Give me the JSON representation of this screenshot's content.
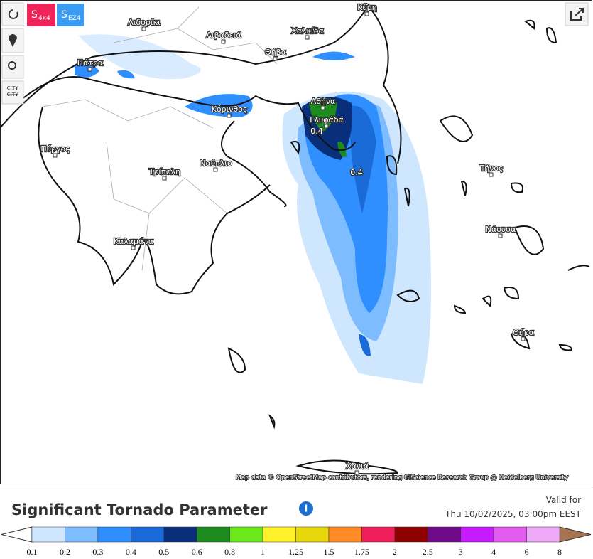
{
  "toolbar": {
    "buttons": [
      {
        "letter": "S",
        "sub": "4x4"
      },
      {
        "letter": "S",
        "sub": "EZ4"
      }
    ],
    "city_button": [
      "CITY",
      "CITY"
    ]
  },
  "map": {
    "places": [
      "Λιδορίκι",
      "Λιβαδειά",
      "Χαλκίδα",
      "Κύμη",
      "Θήβα",
      "Πάτρα",
      "Κόρινθος",
      "Αθήνα",
      "Γλυφάδα",
      "Πύργος",
      "Τρίπολη",
      "Ναύπλιο",
      "Τήνος",
      "Νάουσα",
      "Καλαμάτα",
      "Θήρα",
      "Χανιά"
    ],
    "contour_labels": [
      "0.4",
      "0.4"
    ],
    "attribution": "Map data © OpenStreetMap contributors, rendering GIScience Research Group @ Heidelberg University"
  },
  "legend": {
    "title": "Significant Tornado Parameter",
    "valid_label": "Valid for",
    "valid_time": "Thu 10/02/2025, 03:00pm EEST",
    "ticks": [
      0.1,
      0.2,
      0.3,
      0.4,
      0.5,
      0.6,
      0.8,
      1,
      1.25,
      1.5,
      1.75,
      2,
      2.5,
      3,
      4,
      6,
      8
    ],
    "colors": [
      "#cfe6ff",
      "#7dbcff",
      "#2f8fff",
      "#1a6ad8",
      "#0a2f7a",
      "#1e8b1e",
      "#6be81b",
      "#fff22a",
      "#e6d80a",
      "#ff8a26",
      "#f01e5a",
      "#8c0000",
      "#6f0a86",
      "#c51cff",
      "#e35cf0",
      "#eeaaf8"
    ],
    "under_color": "#ffffff",
    "over_color": "#a77350"
  }
}
